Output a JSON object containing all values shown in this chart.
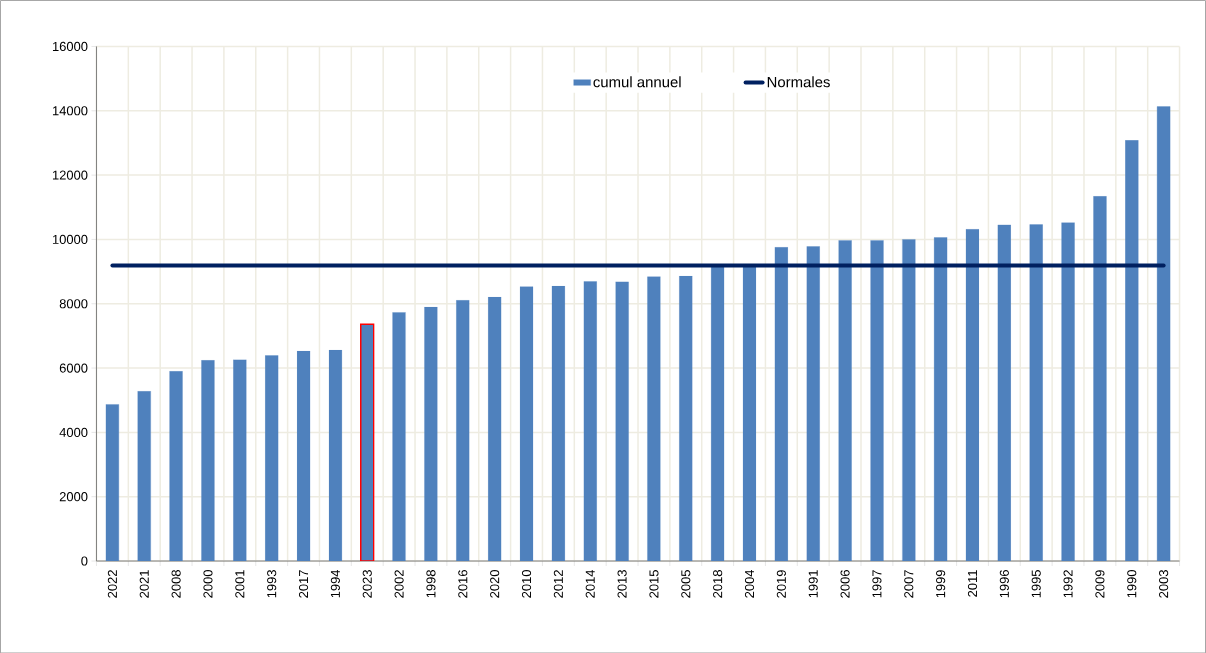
{
  "chart_data": {
    "type": "bar",
    "categories": [
      "2022",
      "2021",
      "2008",
      "2000",
      "2001",
      "1993",
      "2017",
      "1994",
      "2023",
      "2002",
      "1998",
      "2016",
      "2020",
      "2010",
      "2012",
      "2014",
      "2013",
      "2015",
      "2005",
      "2018",
      "2004",
      "2019",
      "1991",
      "2006",
      "1997",
      "2007",
      "1999",
      "2011",
      "1996",
      "1995",
      "1992",
      "2009",
      "1990",
      "2003"
    ],
    "series": [
      {
        "name": "cumul annuel",
        "color": "#4f81bd",
        "colors": [
          "#4f81bd",
          "#4f81bd",
          "#4f81bd",
          "#4f81bd",
          "#4f81bd",
          "#4f81bd",
          "#4f81bd",
          "#4f81bd",
          "#ff0000",
          "#4f81bd",
          "#4f81bd",
          "#4f81bd",
          "#4f81bd",
          "#4f81bd",
          "#4f81bd",
          "#4f81bd",
          "#4f81bd",
          "#4f81bd",
          "#4f81bd",
          "#4f81bd",
          "#4f81bd",
          "#4f81bd",
          "#4f81bd",
          "#4f81bd",
          "#4f81bd",
          "#4f81bd",
          "#4f81bd",
          "#4f81bd",
          "#4f81bd",
          "#4f81bd",
          "#4f81bd",
          "#4f81bd",
          "#4f81bd",
          "#4f81bd"
        ],
        "values": [
          4870,
          5280,
          5900,
          6240,
          6260,
          6390,
          6530,
          6560,
          7360,
          7730,
          7900,
          8110,
          8210,
          8530,
          8550,
          8690,
          8680,
          8840,
          8860,
          9200,
          9230,
          9760,
          9780,
          9970,
          9970,
          10000,
          10060,
          10320,
          10450,
          10460,
          10520,
          11340,
          13080,
          14130
        ]
      },
      {
        "name": "Normales",
        "type": "line",
        "color": "#002060",
        "values": [
          9190,
          9190,
          9190,
          9190,
          9190,
          9190,
          9190,
          9190,
          9190,
          9190,
          9190,
          9190,
          9190,
          9190,
          9190,
          9190,
          9190,
          9190,
          9190,
          9190,
          9190,
          9190,
          9190,
          9190,
          9190,
          9190,
          9190,
          9190,
          9190,
          9190,
          9190,
          9190,
          9190,
          9190
        ]
      }
    ],
    "ylim": [
      0,
      16000
    ],
    "yticks": [
      0,
      2000,
      4000,
      6000,
      8000,
      10000,
      12000,
      14000,
      16000
    ],
    "grid": true,
    "legend": "top"
  }
}
